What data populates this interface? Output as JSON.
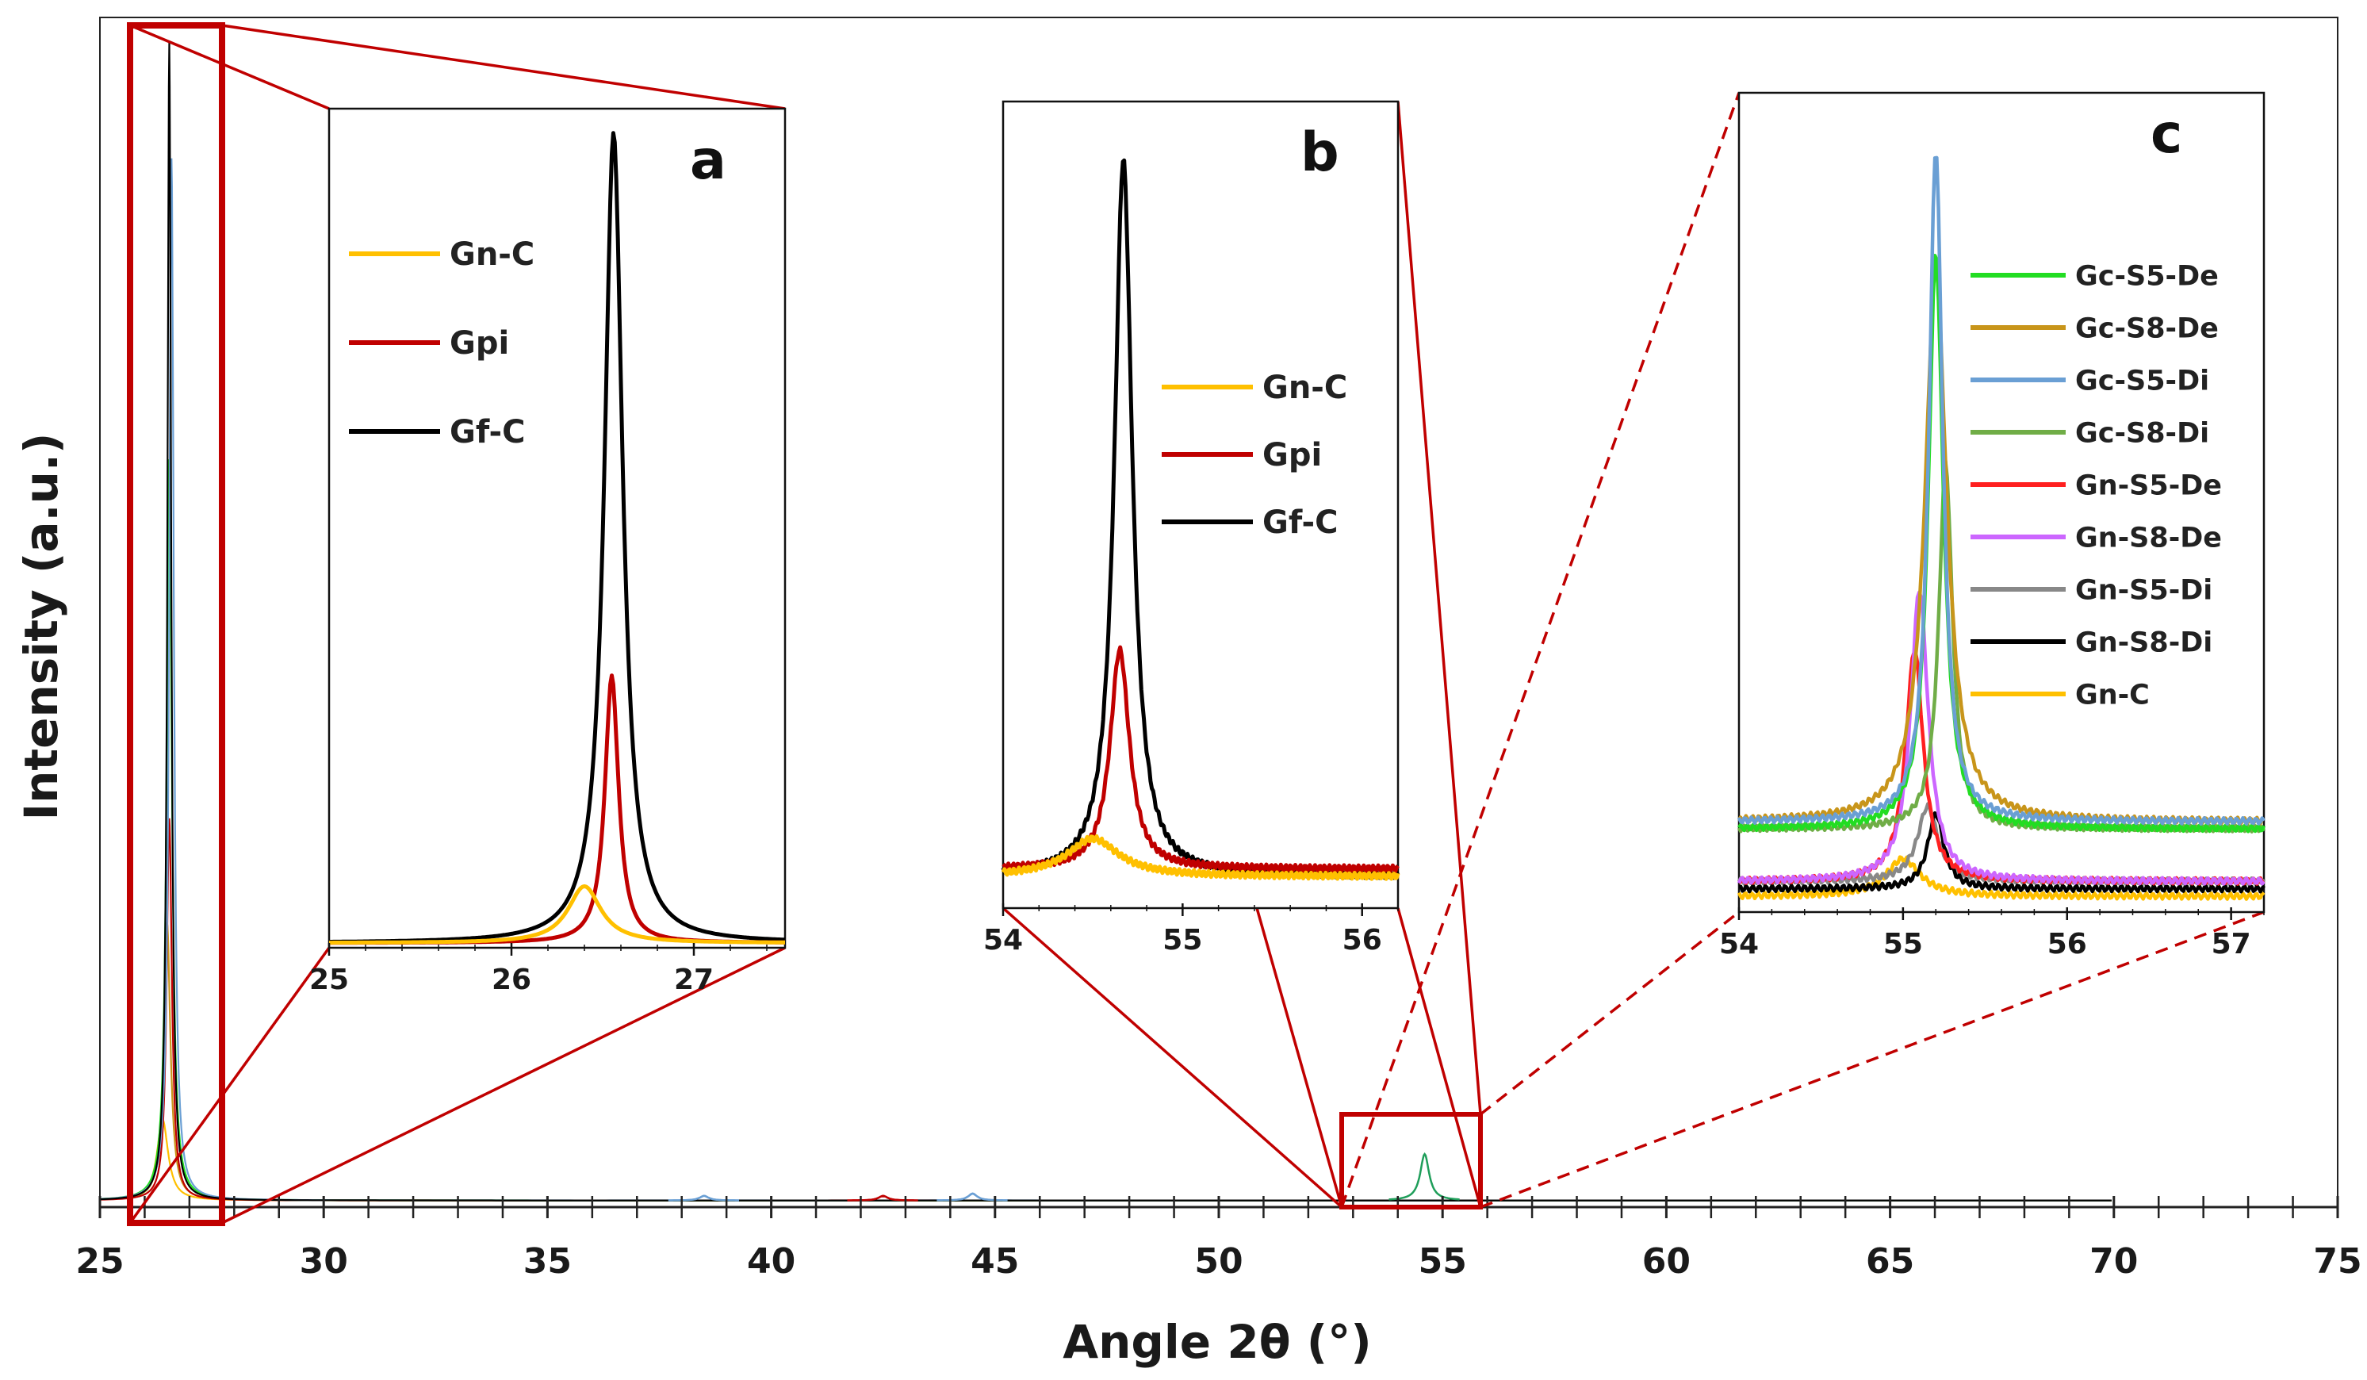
{
  "chart_data": [
    {
      "id": "main",
      "type": "line",
      "xlabel": "Angle 2θ (°)",
      "ylabel": "Intensity (a.u.)",
      "xlim": [
        25,
        75
      ],
      "ylim": [
        0,
        1
      ],
      "xticks": [
        25,
        30,
        35,
        40,
        45,
        50,
        55,
        60,
        65,
        70,
        75
      ],
      "minor_tick_step": 1,
      "grid": false,
      "series_styles": [
        {
          "name": "Gf-C",
          "color": "#000000",
          "peak": 26.55,
          "height": 1.0,
          "width": 0.05
        },
        {
          "name": "Gc-S5-Di",
          "color": "#6a9fd4",
          "peak": 26.6,
          "height": 0.9,
          "width": 0.06
        },
        {
          "name": "Gc-S5-De",
          "color": "#22dd22",
          "peak": 26.55,
          "height": 0.64,
          "width": 0.07
        },
        {
          "name": "Gpi",
          "color": "#c00000",
          "peak": 26.55,
          "height": 0.33,
          "width": 0.07
        },
        {
          "name": "Gc-S8-De",
          "color": "#c8951a",
          "peak": 26.5,
          "height": 0.24,
          "width": 0.09
        },
        {
          "name": "Gn-C",
          "color": "#ffc000",
          "peak": 26.4,
          "height": 0.07,
          "width": 0.15
        }
      ],
      "small_peaks": [
        {
          "x": 54.6,
          "height": 0.04,
          "color": "#1f9e5a"
        },
        {
          "x": 44.5,
          "height": 0.006,
          "color": "#6a9fd4"
        },
        {
          "x": 38.5,
          "height": 0.004,
          "color": "#6a9fd4"
        },
        {
          "x": 42.5,
          "height": 0.004,
          "color": "#c00000"
        }
      ],
      "zoom_boxes": [
        {
          "target": "a",
          "x_range": [
            25.6,
            27.7
          ]
        },
        {
          "target": "b_c",
          "x_range": [
            52.8,
            56.0
          ]
        }
      ]
    },
    {
      "id": "a",
      "label": "a",
      "type": "line",
      "xlim": [
        25,
        27.5
      ],
      "xticks": [
        25,
        26,
        27
      ],
      "legend": [
        "Gn-C",
        "Gpi",
        "Gf-C"
      ],
      "legend_position": "top-left",
      "series": [
        {
          "name": "Gn-C",
          "color": "#ffc000",
          "peak_x": 26.4,
          "peak_y": 0.07,
          "width": 0.22
        },
        {
          "name": "Gpi",
          "color": "#c00000",
          "peak_x": 26.55,
          "peak_y": 0.33,
          "width": 0.09
        },
        {
          "name": "Gf-C",
          "color": "#000000",
          "peak_x": 26.56,
          "peak_y": 1.0,
          "width": 0.12
        }
      ]
    },
    {
      "id": "b",
      "label": "b",
      "type": "line",
      "xlim": [
        54,
        56.2
      ],
      "xticks": [
        54,
        55,
        56
      ],
      "legend": [
        "Gn-C",
        "Gpi",
        "Gf-C"
      ],
      "legend_position": "right",
      "series": [
        {
          "name": "Gn-C",
          "color": "#ffc000",
          "peak_x": 54.5,
          "peak_y": 0.05,
          "width": 0.35,
          "baseline": 0.0
        },
        {
          "name": "Gpi",
          "color": "#c00000",
          "peak_x": 54.65,
          "peak_y": 0.3,
          "width": 0.13,
          "baseline": 0.01
        },
        {
          "name": "Gf-C",
          "color": "#000000",
          "peak_x": 54.67,
          "peak_y": 0.95,
          "width": 0.12,
          "baseline": 0.0
        }
      ]
    },
    {
      "id": "c",
      "label": "c",
      "type": "line",
      "xlim": [
        54,
        57.2
      ],
      "xticks": [
        54,
        55,
        56,
        57
      ],
      "legend": [
        "Gc-S5-De",
        "Gc-S8-De",
        "Gc-S5-Di",
        "Gc-S8-Di",
        "Gn-S5-De",
        "Gn-S8-De",
        "Gn-S5-Di",
        "Gn-S8-Di",
        "Gn-C"
      ],
      "legend_position": "top-right",
      "series": [
        {
          "name": "Gc-S5-De",
          "color": "#22dd22",
          "peak_x": 55.2,
          "peak_y": 0.86,
          "width": 0.11,
          "baseline": 0.09
        },
        {
          "name": "Gc-S8-De",
          "color": "#c8951a",
          "peak_x": 55.2,
          "peak_y": 0.84,
          "width": 0.16,
          "baseline": 0.1
        },
        {
          "name": "Gc-S5-Di",
          "color": "#6a9fd4",
          "peak_x": 55.2,
          "peak_y": 1.0,
          "width": 0.1,
          "baseline": 0.1
        },
        {
          "name": "Gc-S8-Di",
          "color": "#70ad47",
          "peak_x": 55.26,
          "peak_y": 0.58,
          "width": 0.1,
          "baseline": 0.09
        },
        {
          "name": "Gn-S5-De",
          "color": "#ff2020",
          "peak_x": 55.07,
          "peak_y": 0.33,
          "width": 0.13,
          "baseline": 0.02
        },
        {
          "name": "Gn-S8-De",
          "color": "#cc66ff",
          "peak_x": 55.1,
          "peak_y": 0.41,
          "width": 0.13,
          "baseline": 0.02
        },
        {
          "name": "Gn-S5-Di",
          "color": "#888888",
          "peak_x": 55.15,
          "peak_y": 0.12,
          "width": 0.15,
          "baseline": 0.02
        },
        {
          "name": "Gn-S8-Di",
          "color": "#000000",
          "peak_x": 55.2,
          "peak_y": 0.11,
          "width": 0.12,
          "baseline": 0.01
        },
        {
          "name": "Gn-C",
          "color": "#ffc000",
          "peak_x": 55.0,
          "peak_y": 0.05,
          "width": 0.25,
          "baseline": 0.0
        }
      ]
    }
  ]
}
